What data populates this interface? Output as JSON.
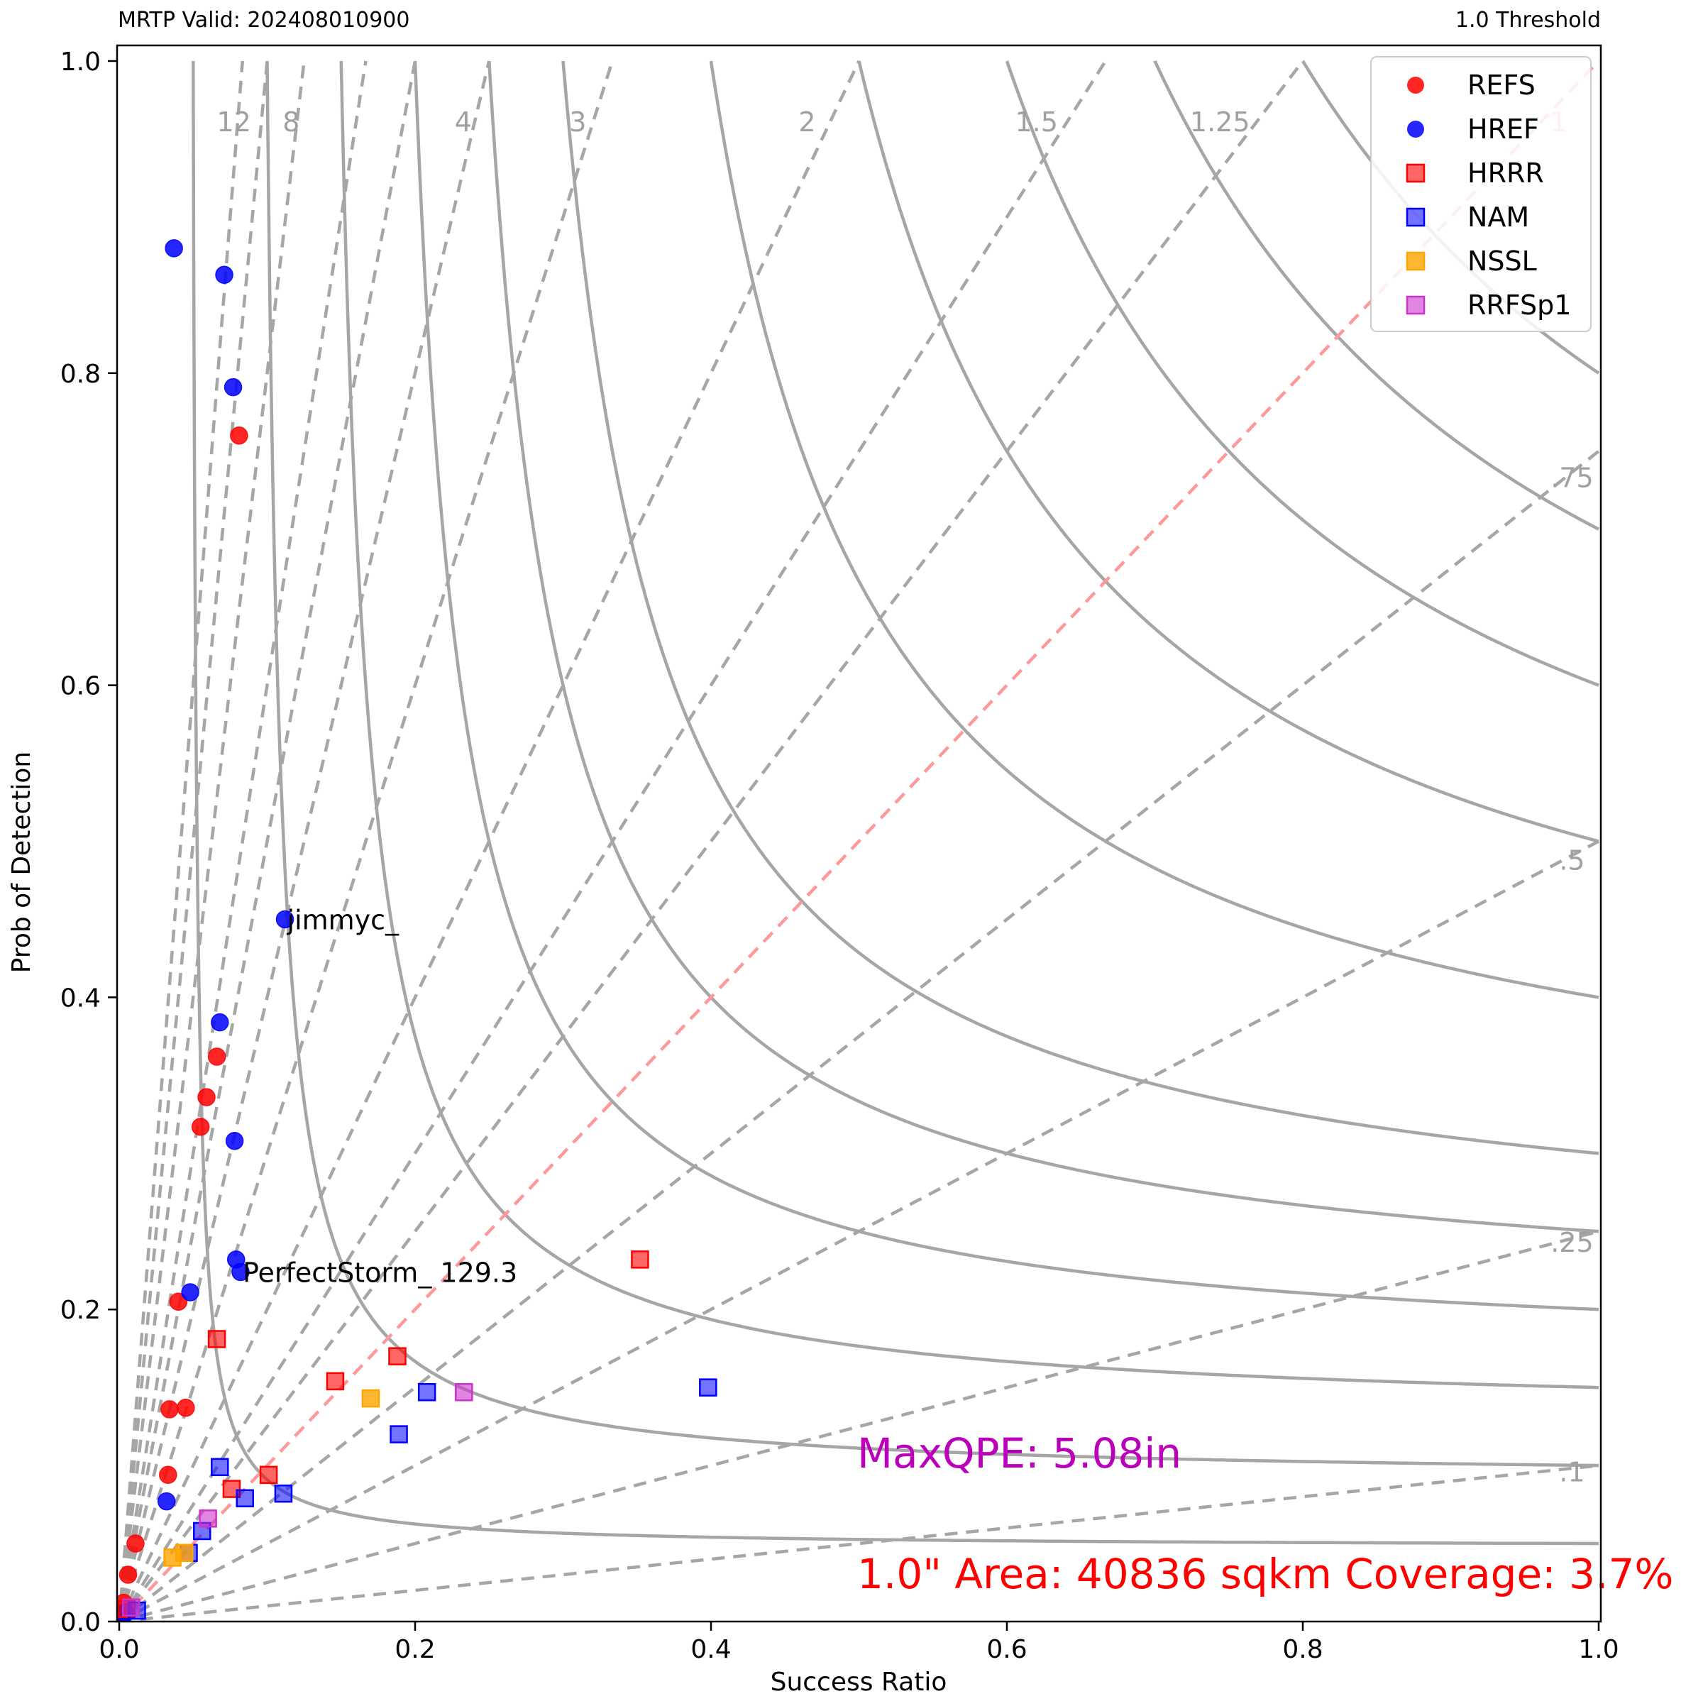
{
  "header": {
    "left_title": "MRTP Valid: 202408010900",
    "right_title": "1.0 Threshold"
  },
  "chart_data": {
    "type": "scatter",
    "xlabel": "Success Ratio",
    "ylabel": "Prob of Detection",
    "xlim": [
      0,
      1.0
    ],
    "ylim": [
      0,
      1.0
    ],
    "x_ticks": [
      "0.0",
      "0.2",
      "0.4",
      "0.6",
      "0.8",
      "1.0"
    ],
    "y_ticks": [
      "0.0",
      "0.2",
      "0.4",
      "0.6",
      "0.8",
      "1.0"
    ],
    "grid": false,
    "legend_placement": "top-right",
    "background_lines": {
      "csi_levels": [
        0.05,
        0.1,
        0.15,
        0.2,
        0.25,
        0.3,
        0.4,
        0.5,
        0.6,
        0.7,
        0.8
      ],
      "bias_lines": [
        {
          "value": 12,
          "label": "12"
        },
        {
          "value": 10,
          "label": ""
        },
        {
          "value": 8,
          "label": "8"
        },
        {
          "value": 6,
          "label": ""
        },
        {
          "value": 5,
          "label": ""
        },
        {
          "value": 4,
          "label": "4"
        },
        {
          "value": 3,
          "label": "3"
        },
        {
          "value": 2,
          "label": "2"
        },
        {
          "value": 1.5,
          "label": "1.5"
        },
        {
          "value": 1.25,
          "label": "1.25"
        },
        {
          "value": 1,
          "label": "1"
        },
        {
          "value": 0.75,
          "label": ".75"
        },
        {
          "value": 0.5,
          "label": ".5"
        },
        {
          "value": 0.25,
          "label": ".25"
        },
        {
          "value": 0.1,
          "label": ".1"
        }
      ],
      "line_color": "#a6a6a6",
      "unity_color": "#ff9999"
    },
    "series": [
      {
        "name": "REFS",
        "marker": "circle",
        "color": "#ff0000",
        "alpha": 0.85,
        "points": [
          [
            0.081,
            0.76
          ],
          [
            0.066,
            0.362
          ],
          [
            0.059,
            0.336
          ],
          [
            0.055,
            0.317
          ],
          [
            0.04,
            0.205
          ],
          [
            0.045,
            0.137
          ],
          [
            0.034,
            0.136
          ],
          [
            0.033,
            0.094
          ],
          [
            0.011,
            0.05
          ],
          [
            0.006,
            0.03
          ],
          [
            0.003,
            0.012
          ],
          [
            0.001,
            0.004
          ]
        ]
      },
      {
        "name": "HREF",
        "marker": "circle",
        "color": "#0000ff",
        "alpha": 0.85,
        "points": [
          [
            0.037,
            0.88
          ],
          [
            0.071,
            0.863
          ],
          [
            0.077,
            0.791
          ],
          [
            0.068,
            0.384
          ],
          [
            0.078,
            0.308
          ],
          [
            0.079,
            0.232
          ],
          [
            0.082,
            0.224
          ],
          [
            0.048,
            0.211
          ],
          [
            0.032,
            0.077
          ],
          [
            0.112,
            0.45
          ],
          [
            0.004,
            0.006
          ],
          [
            0.002,
            0.003
          ]
        ]
      },
      {
        "name": "HRRR",
        "marker": "square",
        "color": "#ff0000",
        "alpha": 0.6,
        "points": [
          [
            0.352,
            0.232
          ],
          [
            0.188,
            0.17
          ],
          [
            0.146,
            0.154
          ],
          [
            0.066,
            0.181
          ],
          [
            0.101,
            0.094
          ],
          [
            0.076,
            0.085
          ],
          [
            0.005,
            0.008
          ]
        ]
      },
      {
        "name": "NAM",
        "marker": "square",
        "color": "#0000ff",
        "alpha": 0.55,
        "points": [
          [
            0.398,
            0.15
          ],
          [
            0.208,
            0.147
          ],
          [
            0.189,
            0.12
          ],
          [
            0.111,
            0.082
          ],
          [
            0.085,
            0.079
          ],
          [
            0.068,
            0.099
          ],
          [
            0.056,
            0.058
          ],
          [
            0.047,
            0.044
          ],
          [
            0.012,
            0.007
          ]
        ]
      },
      {
        "name": "NSSL",
        "marker": "square",
        "color": "#ffa500",
        "alpha": 0.8,
        "points": [
          [
            0.17,
            0.143
          ],
          [
            0.044,
            0.044
          ],
          [
            0.036,
            0.041
          ]
        ]
      },
      {
        "name": "RRFSp1",
        "marker": "square",
        "color": "#cc33cc",
        "alpha": 0.6,
        "points": [
          [
            0.233,
            0.147
          ],
          [
            0.06,
            0.066
          ],
          [
            0.008,
            0.009
          ]
        ]
      }
    ],
    "annotations": [
      {
        "text": "jimmyc_",
        "x": 0.112,
        "y": 0.45
      },
      {
        "text": "PerfectStorm_ 129.3",
        "x": 0.082,
        "y": 0.224
      }
    ],
    "notes": [
      {
        "text": "MaxQPE: 5.08in",
        "color": "#bb00bb"
      },
      {
        "text": "1.0\" Area: 40836 sqkm Coverage: 3.7%",
        "color": "#ff0000"
      }
    ]
  }
}
